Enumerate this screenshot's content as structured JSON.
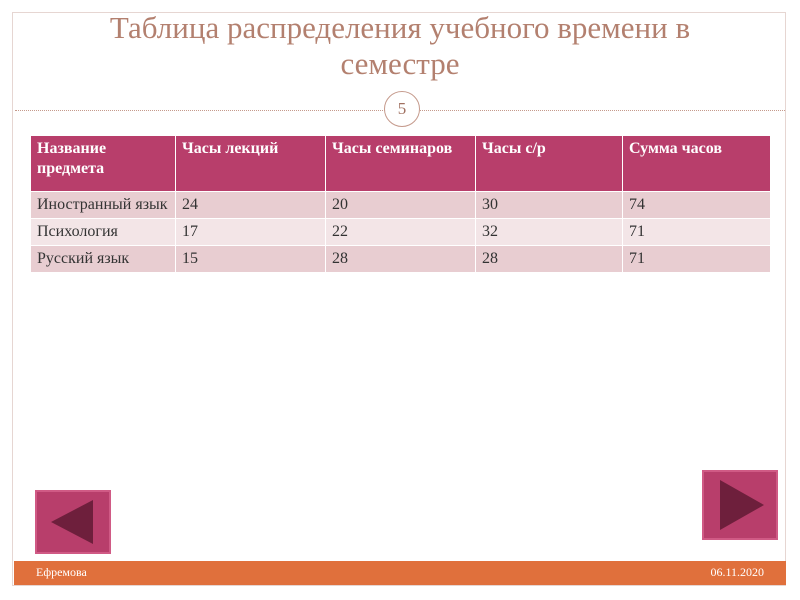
{
  "header": {
    "title_lines": [
      "Таблица распределения учебного времени в",
      "семестре"
    ],
    "slide_number": "5"
  },
  "table": {
    "columns": [
      "Название предмета",
      "Часы лекций",
      "Часы семинаров",
      "Часы с/р",
      "Сумма часов"
    ],
    "rows": [
      [
        "Иностранный язык",
        "24",
        "20",
        "30",
        "74"
      ],
      [
        "Психология",
        "17",
        "22",
        "32",
        "71"
      ],
      [
        "Русский язык",
        "15",
        "28",
        "28",
        "71"
      ]
    ]
  },
  "footer": {
    "author": "Ефремова",
    "date": "06.11.2020"
  }
}
